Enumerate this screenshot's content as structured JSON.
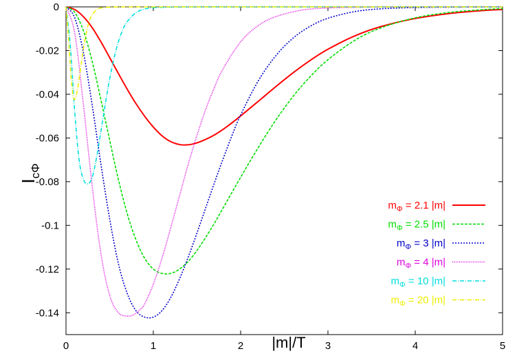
{
  "chart_data": {
    "type": "line",
    "xlabel": "|m|/T",
    "ylabel_main": "I",
    "ylabel_sub": "cΦ",
    "xlim": [
      0,
      5
    ],
    "ylim": [
      -0.15,
      0
    ],
    "x_ticks": [
      0,
      1,
      2,
      3,
      4,
      5
    ],
    "x_tick_labels": [
      "0",
      "1",
      "2",
      "3",
      "4",
      "5"
    ],
    "y_ticks": [
      0,
      -0.02,
      -0.04,
      -0.06,
      -0.08,
      -0.1,
      -0.12,
      -0.14
    ],
    "y_tick_labels": [
      "0",
      "-0.02",
      "-0.04",
      "-0.06",
      "-0.08",
      "-0.1",
      "-0.12",
      "-0.14"
    ],
    "grid": false,
    "legend_position": "bottom-right",
    "series": [
      {
        "name": "m_Φ = 2.1 |m|",
        "legend_main": "m",
        "legend_sub": "Φ",
        "legend_rest": " = 2.1 |m|",
        "color": "#ff0000",
        "dash": "solid",
        "x": [
          0,
          0.1,
          0.2,
          0.3,
          0.4,
          0.5,
          0.6,
          0.7,
          0.8,
          0.9,
          1.0,
          1.1,
          1.2,
          1.3,
          1.37,
          1.45,
          1.55,
          1.7,
          1.85,
          2.0,
          2.2,
          2.4,
          2.6,
          2.8,
          3.0,
          3.3,
          3.6,
          4.0,
          4.4,
          4.8,
          5.0
        ],
        "y": [
          0,
          -0.0012,
          -0.0045,
          -0.0095,
          -0.016,
          -0.0232,
          -0.0305,
          -0.0376,
          -0.0442,
          -0.05,
          -0.055,
          -0.059,
          -0.0617,
          -0.063,
          -0.0632,
          -0.0628,
          -0.0615,
          -0.0586,
          -0.0546,
          -0.0499,
          -0.0433,
          -0.0366,
          -0.0302,
          -0.0244,
          -0.0194,
          -0.0134,
          -0.0091,
          -0.0053,
          -0.003,
          -0.0016,
          -0.0012
        ]
      },
      {
        "name": "m_Φ = 2.5 |m|",
        "legend_main": "m",
        "legend_sub": "Φ",
        "legend_rest": " = 2.5 |m|",
        "color": "#00dd00",
        "dash": "4,2",
        "x": [
          0,
          0.1,
          0.2,
          0.3,
          0.4,
          0.5,
          0.6,
          0.7,
          0.8,
          0.9,
          1.0,
          1.1,
          1.2,
          1.3,
          1.4,
          1.5,
          1.6,
          1.7,
          1.8,
          2.0,
          2.2,
          2.4,
          2.6,
          2.8,
          3.0,
          3.3,
          3.6,
          4.0,
          4.4,
          4.8,
          5.0
        ],
        "y": [
          0,
          -0.0025,
          -0.011,
          -0.025,
          -0.0425,
          -0.061,
          -0.079,
          -0.0945,
          -0.1065,
          -0.115,
          -0.12,
          -0.122,
          -0.122,
          -0.12,
          -0.1165,
          -0.1115,
          -0.1055,
          -0.099,
          -0.092,
          -0.078,
          -0.0645,
          -0.052,
          -0.041,
          -0.0318,
          -0.0242,
          -0.0155,
          -0.0097,
          -0.005,
          -0.0025,
          -0.0012,
          -0.0008
        ]
      },
      {
        "name": "m_Φ = 3 |m|",
        "legend_main": "m",
        "legend_sub": "Φ",
        "legend_rest": " = 3 |m|",
        "color": "#0000cc",
        "dash": "2,2",
        "x": [
          0,
          0.1,
          0.2,
          0.3,
          0.4,
          0.5,
          0.6,
          0.7,
          0.8,
          0.9,
          1.0,
          1.1,
          1.2,
          1.3,
          1.4,
          1.5,
          1.6,
          1.7,
          1.8,
          1.9,
          2.0,
          2.2,
          2.4,
          2.6,
          2.8,
          3.0,
          3.3,
          3.6,
          4.0,
          4.5,
          5.0
        ],
        "y": [
          0,
          -0.005,
          -0.021,
          -0.045,
          -0.072,
          -0.097,
          -0.1175,
          -0.131,
          -0.139,
          -0.142,
          -0.142,
          -0.139,
          -0.133,
          -0.1245,
          -0.1145,
          -0.1035,
          -0.092,
          -0.0805,
          -0.0695,
          -0.059,
          -0.0495,
          -0.034,
          -0.0225,
          -0.0143,
          -0.0088,
          -0.0052,
          -0.0022,
          -0.0009,
          -0.0003,
          -0.0001,
          0
        ]
      },
      {
        "name": "m_Φ = 4 |m|",
        "legend_main": "m",
        "legend_sub": "Φ",
        "legend_rest": " = 4 |m|",
        "color": "#dd00dd",
        "dash": "1,1.5",
        "x": [
          0,
          0.1,
          0.2,
          0.3,
          0.4,
          0.5,
          0.6,
          0.7,
          0.77,
          0.85,
          0.9,
          1.0,
          1.1,
          1.2,
          1.3,
          1.4,
          1.5,
          1.6,
          1.7,
          1.8,
          2.0,
          2.2,
          2.4,
          2.7,
          3.0,
          3.5,
          4.0,
          5.0
        ],
        "y": [
          0,
          -0.012,
          -0.045,
          -0.082,
          -0.113,
          -0.132,
          -0.14,
          -0.1415,
          -0.141,
          -0.1385,
          -0.136,
          -0.127,
          -0.115,
          -0.101,
          -0.0865,
          -0.072,
          -0.0588,
          -0.047,
          -0.0368,
          -0.0283,
          -0.016,
          -0.0086,
          -0.0045,
          -0.0015,
          -0.0005,
          -0.0001,
          0,
          0
        ]
      },
      {
        "name": "m_Φ = 10 |m|",
        "legend_main": "m",
        "legend_sub": "Φ",
        "legend_rest": " = 10 |m|",
        "color": "#00dddd",
        "dash": "6,2,1,2",
        "x": [
          0,
          0.05,
          0.1,
          0.15,
          0.2,
          0.25,
          0.3,
          0.35,
          0.4,
          0.45,
          0.5,
          0.55,
          0.6,
          0.65,
          0.7,
          0.8,
          0.9,
          1.0,
          1.2,
          1.5,
          2.0,
          3.0,
          5.0
        ],
        "y": [
          0,
          -0.018,
          -0.048,
          -0.07,
          -0.079,
          -0.081,
          -0.078,
          -0.069,
          -0.057,
          -0.0445,
          -0.033,
          -0.0235,
          -0.016,
          -0.0105,
          -0.0068,
          -0.0027,
          -0.001,
          -0.0004,
          -0.0001,
          0,
          0,
          0,
          0
        ]
      },
      {
        "name": "m_Φ = 20 |m|",
        "legend_main": "m",
        "legend_sub": "Φ",
        "legend_rest": " = 20 |m|",
        "color": "#eeee00",
        "dash": "6,2,1,2",
        "x": [
          0,
          0.03,
          0.06,
          0.09,
          0.12,
          0.15,
          0.18,
          0.21,
          0.24,
          0.27,
          0.3,
          0.35,
          0.4,
          0.5,
          0.7,
          1.0,
          2.0,
          5.0
        ],
        "y": [
          0,
          -0.015,
          -0.033,
          -0.042,
          -0.04,
          -0.033,
          -0.0245,
          -0.0165,
          -0.0105,
          -0.0062,
          -0.0036,
          -0.0013,
          -0.0005,
          -0.0001,
          0,
          0,
          0,
          0
        ]
      }
    ]
  }
}
